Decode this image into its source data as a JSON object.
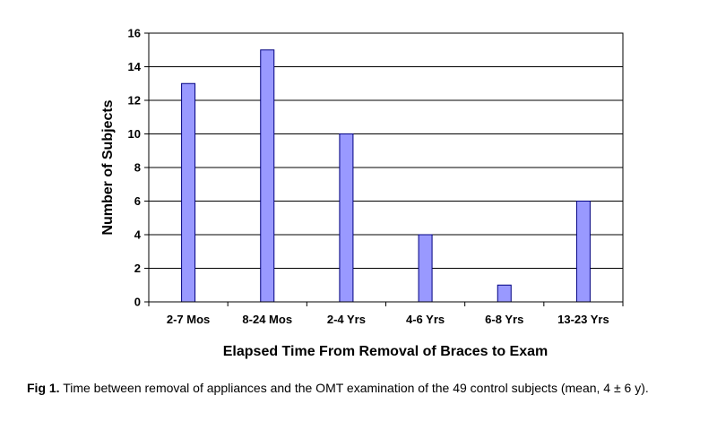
{
  "chart_data": {
    "type": "bar",
    "categories": [
      "2-7 Mos",
      "8-24 Mos",
      "2-4 Yrs",
      "4-6 Yrs",
      "6-8 Yrs",
      "13-23 Yrs"
    ],
    "values": [
      13,
      15,
      10,
      4,
      1,
      6
    ],
    "xlabel": "Elapsed Time From Removal of Braces to Exam",
    "ylabel": "Number of Subjects",
    "ylim": [
      0,
      16
    ],
    "yticks": [
      "0",
      "2",
      "4",
      "6",
      "8",
      "10",
      "12",
      "14",
      "16"
    ],
    "grid": true,
    "legend": "none",
    "bar_color": "#9999ff",
    "bar_edge_color": "#000080"
  },
  "caption": {
    "label": "Fig 1.",
    "text": "Time between removal of appliances and the OMT examination of the 49 control subjects (mean, 4 ± 6 y)."
  }
}
